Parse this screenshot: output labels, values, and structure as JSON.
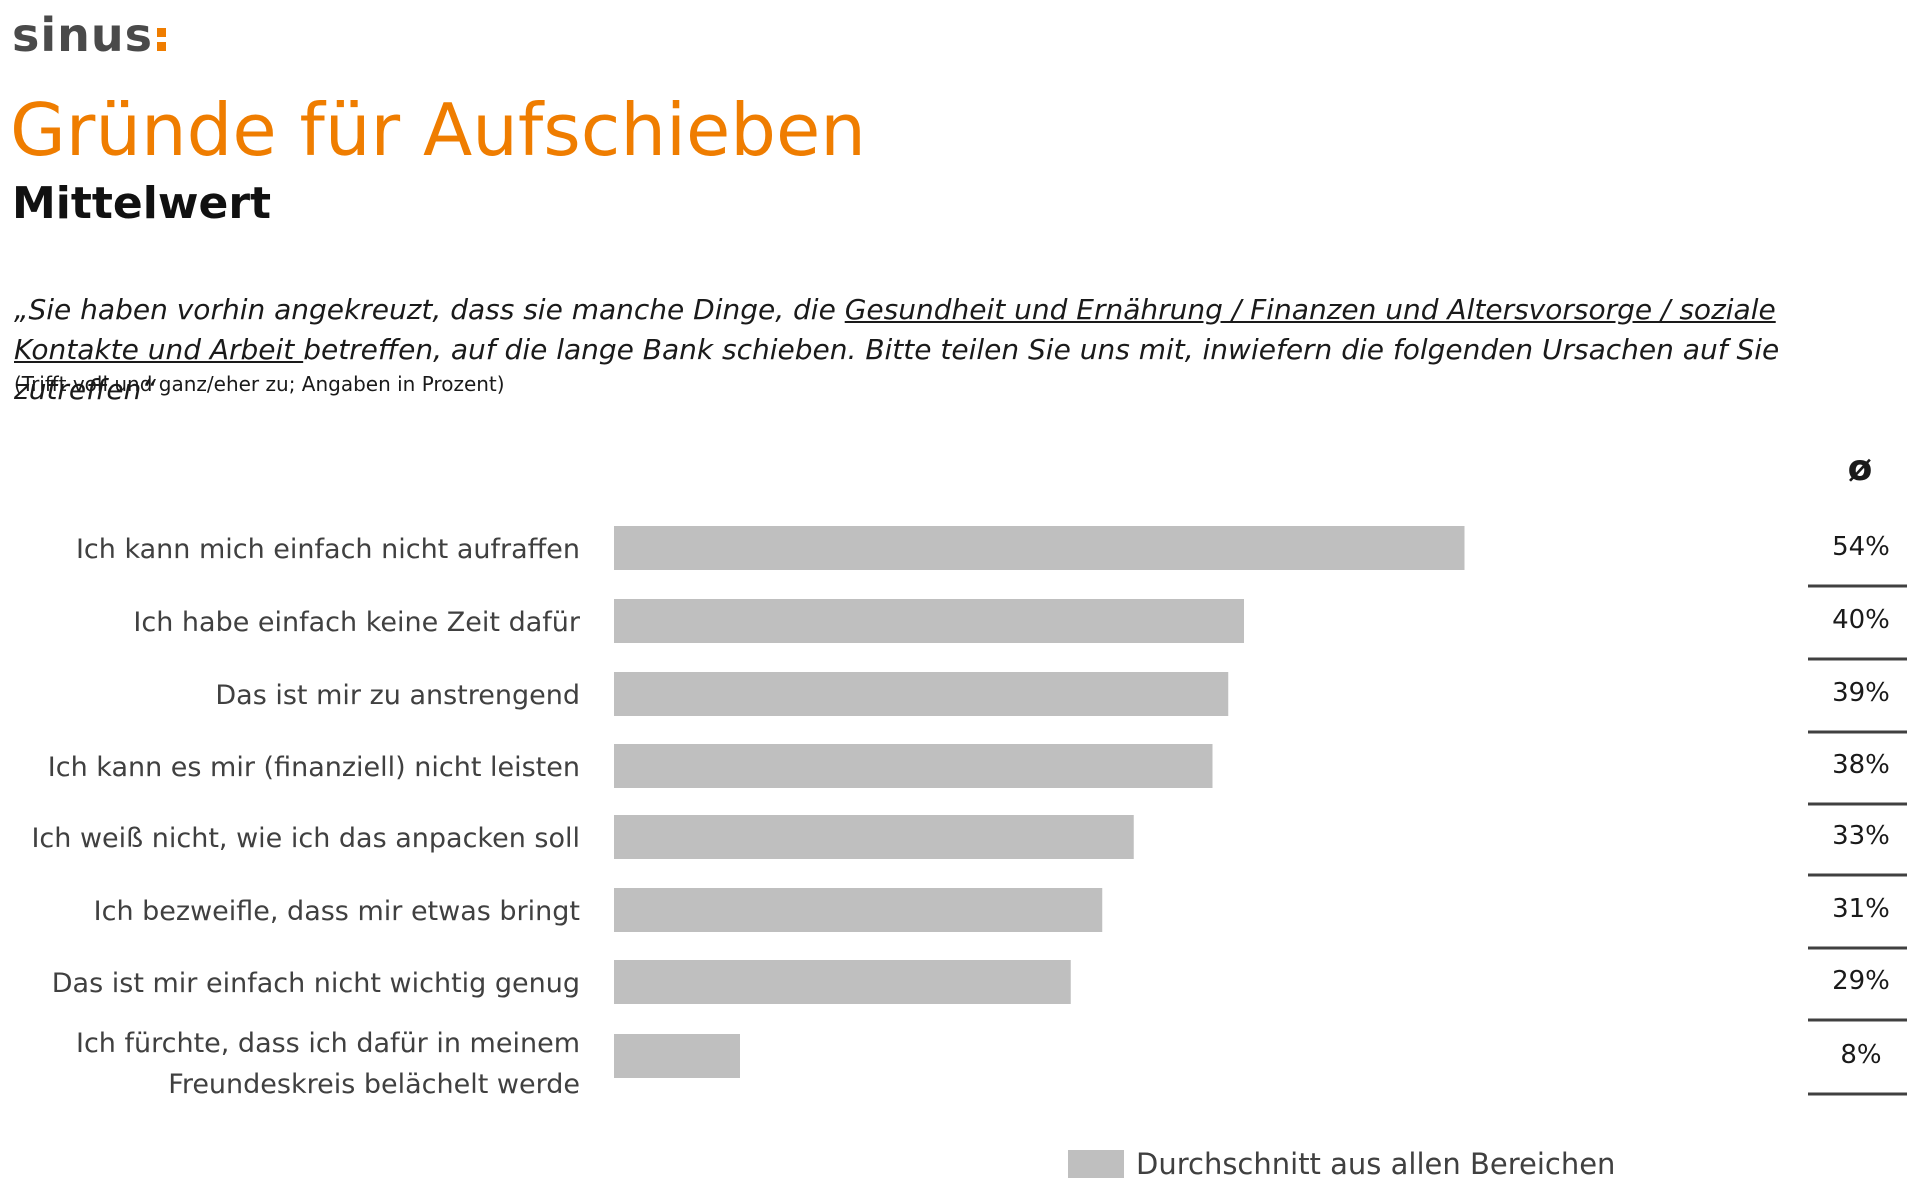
{
  "brand": {
    "logo_text": "sinus",
    "accent_color": "#ef7d00",
    "logo_color": "#4a4a4a"
  },
  "header": {
    "title": "Gründe für Aufschieben",
    "subtitle": "Mittelwert"
  },
  "question": {
    "part1": "„Sie haben vorhin angekreuzt, dass sie manche Dinge, die ",
    "underlined": "Gesundheit und Ernährung / Finanzen und Altersvorsorge / soziale Kontakte und Arbeit ",
    "part2": " betreffen, auf die lange Bank schieben. Bitte teilen Sie uns mit, inwiefern die folgenden Ursachen auf Sie zutreffen“",
    "note": "(Trifft voll und ganz/eher zu; Angaben in Prozent)"
  },
  "avg_column": {
    "header": "ø"
  },
  "legend": {
    "label": "Durchschnitt aus allen Bereichen",
    "color": "#bfbfbf"
  },
  "chart_data": {
    "type": "bar",
    "orientation": "horizontal",
    "categories": [
      "Ich kann mich einfach nicht aufraffen",
      "Ich habe einfach keine Zeit dafür",
      "Das ist mir zu anstrengend",
      "Ich kann es mir (finanziell) nicht leisten",
      "Ich weiß nicht, wie ich das anpacken soll",
      "Ich bezweifle, dass mir etwas bringt",
      "Das ist mir einfach nicht wichtig genug",
      "Ich fürchte, dass ich dafür in meinem Freundeskreis belächelt werde"
    ],
    "series": [
      {
        "name": "Durchschnitt aus allen Bereichen",
        "values": [
          54,
          40,
          39,
          38,
          33,
          31,
          29,
          8
        ]
      }
    ],
    "value_labels": [
      "54%",
      "40%",
      "39%",
      "38%",
      "33%",
      "31%",
      "29%",
      "8%"
    ],
    "xlim": [
      0,
      100
    ],
    "bar_color": "#bfbfbf",
    "grid": false,
    "legend_position": "bottom"
  }
}
